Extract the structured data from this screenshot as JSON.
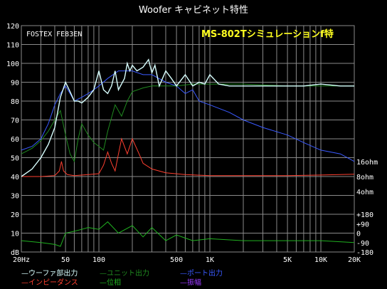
{
  "window": {
    "title": "Woofer キャビネット特性"
  },
  "chart_data": {
    "type": "line",
    "title": "Woofer キャビネット特性",
    "driver_label": "FOSTEX FE83EN",
    "subtitle": "MS-802Tシミュレーションf特",
    "x_scale": "log",
    "xlim": [
      20,
      20000
    ],
    "x_tick_labels": [
      "20Hz",
      "50",
      "100",
      "500",
      "1K",
      "5K",
      "10K",
      "20K"
    ],
    "x_tick_values": [
      20,
      50,
      100,
      500,
      1000,
      5000,
      10000,
      20000
    ],
    "ylim": [
      0,
      120
    ],
    "y_tick_values": [
      0,
      10,
      20,
      30,
      40,
      50,
      60,
      70,
      80,
      90,
      100,
      110,
      120
    ],
    "y_tick_labels": [
      "dB",
      "10",
      "20",
      "30",
      "40",
      "50",
      "60",
      "70",
      "80",
      "90",
      "100",
      "110",
      "120"
    ],
    "right_axis_impedance": {
      "labels": [
        "16ohm",
        "8ohm",
        "4ohm"
      ],
      "positions_db": [
        48,
        40,
        32
      ]
    },
    "right_axis_phase": {
      "labels": [
        "+180",
        "+90",
        "0",
        "-90",
        "-180"
      ],
      "positions_db": [
        20,
        15,
        10,
        5,
        0
      ]
    },
    "grid": true,
    "legend_placement": "bottom",
    "colors": {
      "woofer_output": "#d8ffff",
      "unit_output": "#208a20",
      "port_output": "#3a5aff",
      "impedance": "#ff4030",
      "phase": "#20b020",
      "amplitude": "#9a3aff",
      "grid": "#8a8a8a",
      "subtitle": "#ffff20"
    },
    "series": [
      {
        "name": "ウーファ部出力",
        "color_key": "woofer_output",
        "x": [
          20,
          25,
          30,
          35,
          40,
          45,
          50,
          55,
          60,
          65,
          70,
          80,
          90,
          100,
          110,
          120,
          130,
          140,
          150,
          170,
          180,
          190,
          200,
          220,
          250,
          280,
          300,
          320,
          350,
          400,
          450,
          500,
          600,
          700,
          800,
          900,
          1000,
          1200,
          1500,
          2000,
          3000,
          5000,
          7000,
          10000,
          15000,
          20000
        ],
        "y": [
          40,
          44,
          50,
          57,
          66,
          82,
          90,
          85,
          80,
          80,
          79,
          82,
          86,
          96,
          86,
          84,
          88,
          96,
          86,
          92,
          100,
          96,
          99,
          96,
          98,
          102,
          95,
          99,
          88,
          96,
          92,
          88,
          94,
          88,
          90,
          89,
          94,
          89,
          88,
          88,
          88,
          88,
          88,
          89,
          88,
          88
        ]
      },
      {
        "name": "ユニット出力",
        "color_key": "unit_output",
        "x": [
          20,
          25,
          30,
          35,
          40,
          45,
          50,
          55,
          60,
          65,
          70,
          80,
          90,
          100,
          110,
          120,
          140,
          160,
          180,
          200,
          250,
          300,
          400,
          500,
          700,
          1000,
          2000,
          5000,
          10000,
          20000
        ],
        "y": [
          52,
          55,
          59,
          64,
          70,
          75,
          62,
          52,
          48,
          60,
          68,
          62,
          58,
          56,
          54,
          64,
          78,
          72,
          80,
          85,
          87,
          88,
          88,
          88,
          89,
          89,
          89,
          88,
          88,
          88
        ]
      },
      {
        "name": "ポート出力",
        "color_key": "port_output",
        "x": [
          20,
          25,
          30,
          35,
          40,
          45,
          50,
          55,
          60,
          70,
          80,
          90,
          100,
          120,
          150,
          200,
          250,
          300,
          400,
          500,
          600,
          700,
          800,
          1000,
          1500,
          2000,
          3000,
          5000,
          7000,
          10000,
          15000,
          20000
        ],
        "y": [
          54,
          56,
          60,
          68,
          78,
          84,
          88,
          84,
          80,
          82,
          84,
          86,
          88,
          92,
          96,
          96,
          94,
          94,
          90,
          88,
          84,
          86,
          80,
          78,
          74,
          70,
          66,
          62,
          58,
          54,
          52,
          48
        ]
      },
      {
        "name": "インピーダンス",
        "color_key": "impedance",
        "x": [
          20,
          30,
          40,
          44,
          46,
          48,
          52,
          60,
          80,
          100,
          110,
          120,
          130,
          140,
          150,
          160,
          180,
          200,
          230,
          250,
          300,
          400,
          600,
          1000,
          2000,
          5000,
          10000,
          20000
        ],
        "y": [
          40,
          40,
          40.5,
          43,
          48,
          43,
          41,
          40.5,
          41,
          41.5,
          46,
          53,
          47,
          43,
          52,
          60,
          52,
          60,
          52,
          47,
          44,
          42,
          41,
          40.5,
          40.5,
          40.5,
          40.8,
          41.2
        ]
      },
      {
        "name": "位相",
        "color_key": "phase",
        "x": [
          20,
          30,
          40,
          45,
          50,
          60,
          70,
          80,
          100,
          120,
          150,
          200,
          250,
          300,
          400,
          500,
          700,
          1000,
          2000,
          5000,
          10000,
          20000
        ],
        "y": [
          6,
          5,
          4,
          3,
          10,
          11,
          12,
          13,
          12,
          16,
          10,
          14,
          8,
          13,
          6,
          9,
          6,
          7,
          6,
          6,
          6,
          5
        ]
      },
      {
        "name": "振幅",
        "color_key": "amplitude",
        "x": [],
        "y": []
      }
    ]
  }
}
